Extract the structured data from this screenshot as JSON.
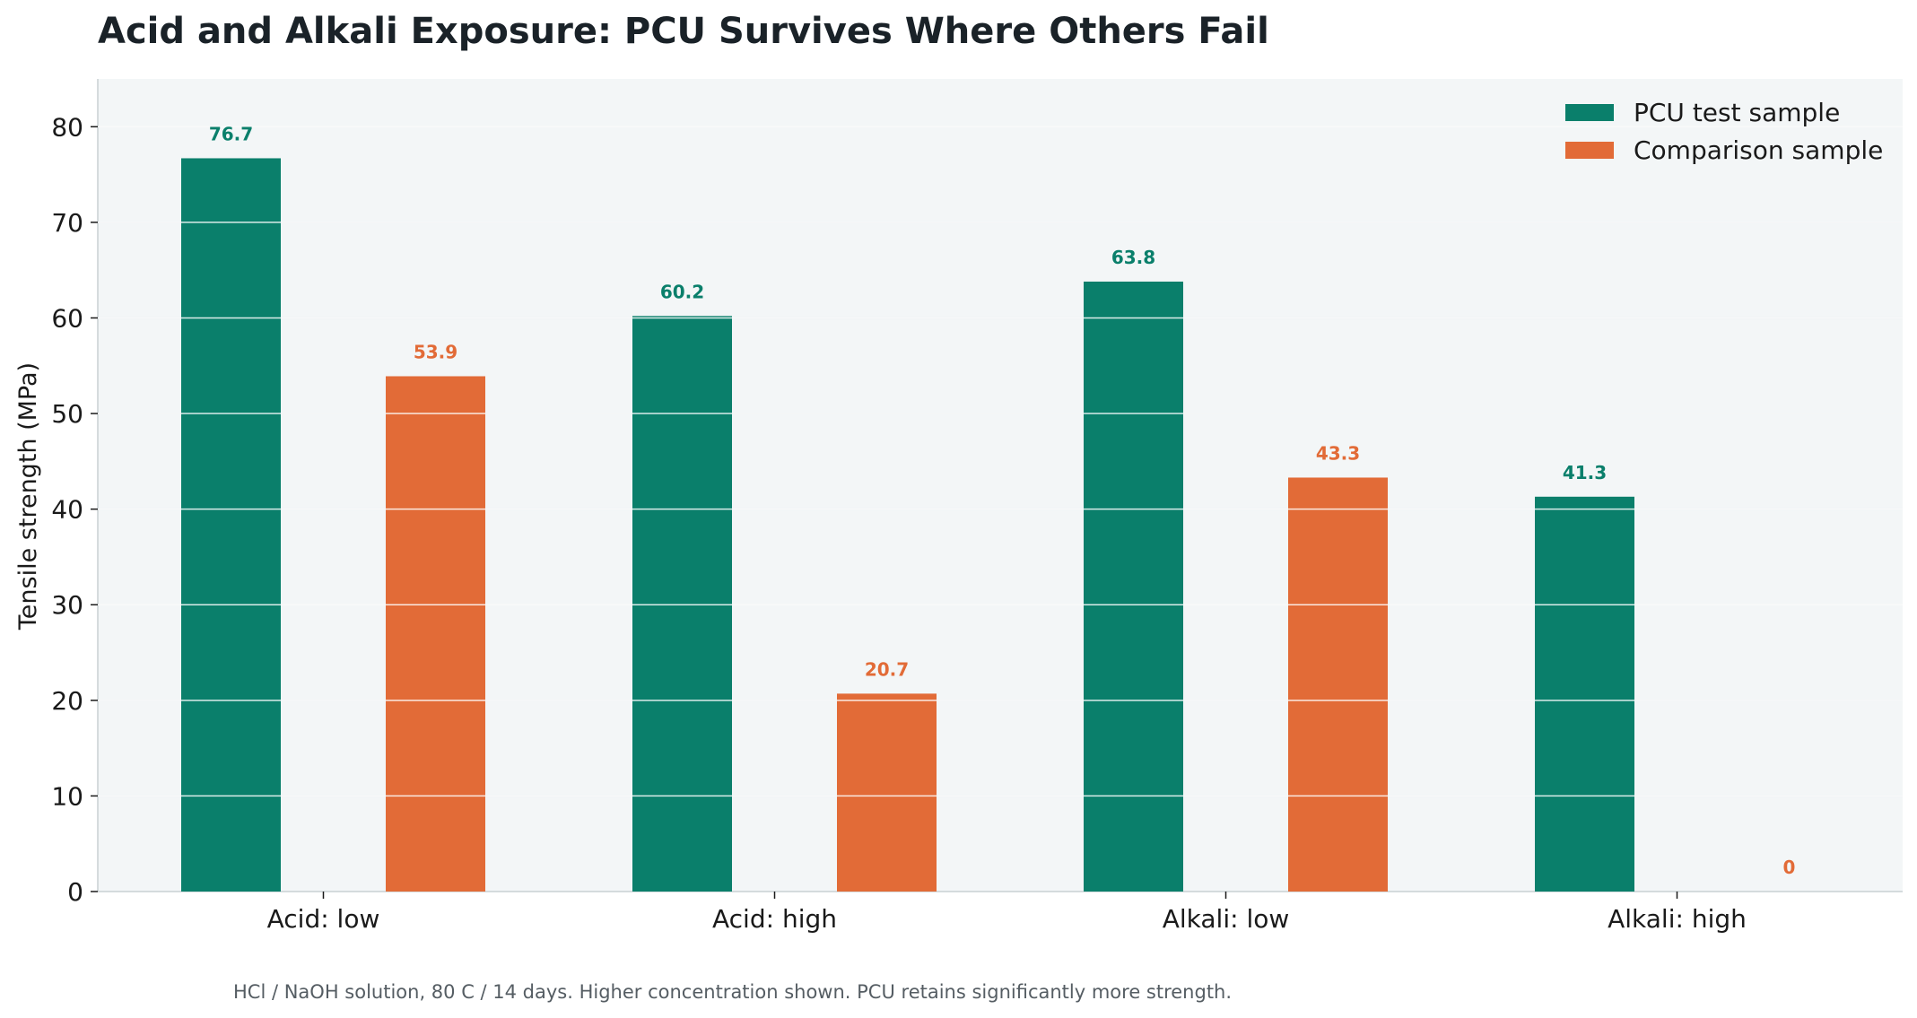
{
  "colors": {
    "pcu": "#0a7f6b",
    "comparison": "#e26b37",
    "plot_background": "#f3f6f7",
    "grid": "#d5dbde",
    "title": "#1a2228",
    "note": "#555d63"
  },
  "chart_data": {
    "type": "bar",
    "title": "Acid and Alkali Exposure: PCU Survives Where Others Fail",
    "xlabel": "",
    "ylabel": "Tensile strength (MPa)",
    "ylim": [
      0,
      85
    ],
    "yticks": [
      0,
      10,
      20,
      30,
      40,
      50,
      60,
      70,
      80
    ],
    "grid": "horizontal",
    "legend_position": "top-right",
    "categories": [
      "Acid: low",
      "Acid: high",
      "Alkali: low",
      "Alkali: high"
    ],
    "series": [
      {
        "name": "PCU test sample",
        "values": [
          76.7,
          60.2,
          63.8,
          41.3
        ],
        "color": "#0a7f6b"
      },
      {
        "name": "Comparison sample",
        "values": [
          53.9,
          20.7,
          43.3,
          0
        ],
        "color": "#e26b37"
      }
    ],
    "note": "HCl / NaOH solution, 80 C / 14 days. Higher concentration shown. PCU retains significantly more strength."
  }
}
